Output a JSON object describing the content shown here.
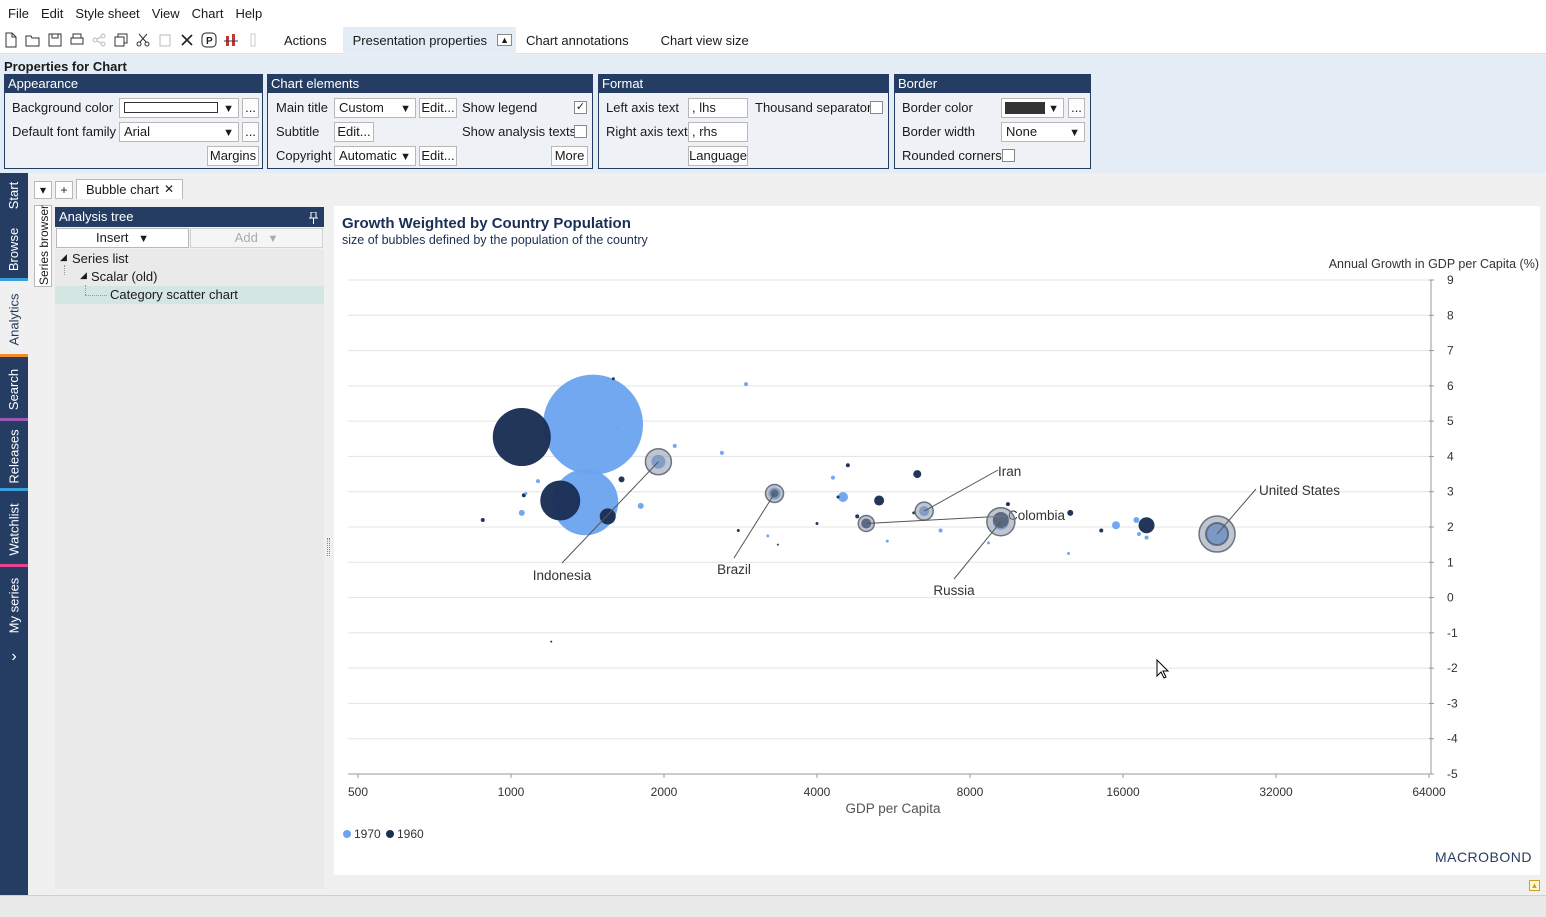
{
  "menu": [
    "File",
    "Edit",
    "Style sheet",
    "View",
    "Chart",
    "Help"
  ],
  "toolbar": {
    "tabs": [
      "Actions",
      "Presentation properties",
      "Chart annotations",
      "Chart view size"
    ],
    "collapse_glyph": "▲"
  },
  "properties": {
    "title": "Properties for Chart",
    "appearance": {
      "header": "Appearance",
      "background_color_label": "Background color",
      "default_font_family_label": "Default font family",
      "default_font_family_value": "Arial",
      "more_button": "...",
      "margins_button": "Margins"
    },
    "chart_elements": {
      "header": "Chart elements",
      "main_title_label": "Main title",
      "main_title_value": "Custom",
      "subtitle_label": "Subtitle",
      "copyright_label": "Copyright",
      "copyright_value": "Automatic",
      "edit_button": "Edit...",
      "show_legend_label": "Show legend",
      "show_legend_checked": "✓",
      "show_analysis_texts_label": "Show analysis texts",
      "more_button": "More"
    },
    "format": {
      "header": "Format",
      "left_axis_text_label": "Left axis text",
      "left_axis_text_value": ", lhs",
      "right_axis_text_label": "Right axis text",
      "right_axis_text_value": ", rhs",
      "thousand_separator_label": "Thousand separator",
      "language_button": "Language"
    },
    "border": {
      "header": "Border",
      "border_color_label": "Border color",
      "border_color_value": "#333333",
      "border_width_label": "Border width",
      "border_width_value": "None",
      "rounded_corners_label": "Rounded corners"
    }
  },
  "sidebar": {
    "tabs": [
      {
        "label": "Start",
        "color": "#253d63"
      },
      {
        "label": "Browse",
        "color": "#3aa0dd"
      },
      {
        "label": "Analytics",
        "color": "#f28c28"
      },
      {
        "label": "Search",
        "color": "#9b59b6"
      },
      {
        "label": "Releases",
        "color": "#3aa0dd"
      },
      {
        "label": "Watchlist",
        "color": "#e84393"
      },
      {
        "label": "My series",
        "color": "#253d63"
      }
    ],
    "expand_glyph": "›"
  },
  "doc_tabs": {
    "dropdown_glyph": "▾",
    "add_glyph": "+",
    "active_label": "Bubble chart",
    "close_glyph": "✕"
  },
  "series_browser_label": "Series browser",
  "analysis_tree": {
    "header": "Analysis tree",
    "pin_glyph": "📌",
    "insert_label": "Insert",
    "add_label": "Add",
    "nodes": [
      "Series list",
      "Scalar (old)",
      "Category scatter chart"
    ]
  },
  "chart_data": {
    "type": "scatter",
    "title": "Growth Weighted by Country Population",
    "subtitle": "size of bubbles defined by the population of  the country",
    "xlabel": "GDP per Capita",
    "ylabel": "Annual Growth in GDP per Capita (%)",
    "x_scale": "log2",
    "xlim": [
      470,
      64000
    ],
    "ylim": [
      -5,
      9
    ],
    "x_ticks": [
      500,
      1000,
      2000,
      4000,
      8000,
      16000,
      32000,
      64000
    ],
    "y_ticks": [
      9,
      8,
      7,
      6,
      5,
      4,
      3,
      2,
      1,
      0,
      -1,
      -2,
      -3,
      -4,
      -5
    ],
    "grid": true,
    "legend_position": "bottom-left",
    "series": [
      {
        "name": "1970",
        "color": "#6aa3ef",
        "points": [
          [
            1450,
            4.9,
            50
          ],
          [
            1400,
            2.7,
            33
          ],
          [
            1950,
            3.85,
            7
          ],
          [
            3300,
            2.95,
            6
          ],
          [
            6500,
            2.45,
            5
          ],
          [
            9200,
            2.15,
            8
          ],
          [
            24500,
            1.8,
            10
          ],
          [
            1800,
            2.6,
            3
          ],
          [
            1050,
            2.4,
            3
          ],
          [
            2100,
            4.3,
            2
          ],
          [
            4500,
            2.85,
            5
          ],
          [
            15500,
            2.05,
            4
          ],
          [
            17000,
            2.2,
            3
          ],
          [
            17800,
            1.7,
            2
          ],
          [
            2600,
            4.1,
            2
          ],
          [
            1070,
            2.95,
            1.5
          ],
          [
            1130,
            3.3,
            2
          ],
          [
            12500,
            1.25,
            1.5
          ],
          [
            7000,
            1.9,
            2
          ],
          [
            4300,
            3.4,
            2
          ],
          [
            2900,
            6.05,
            2
          ],
          [
            8700,
            1.55,
            1.5
          ],
          [
            17200,
            1.8,
            2
          ],
          [
            5500,
            1.6,
            1.5
          ],
          [
            1620,
            4.8,
            1.5
          ],
          [
            3200,
            1.75,
            1.5
          ]
        ]
      },
      {
        "name": "1960",
        "color": "#1b2f55",
        "points": [
          [
            1050,
            4.55,
            29
          ],
          [
            1250,
            2.75,
            20
          ],
          [
            1550,
            2.3,
            8
          ],
          [
            9200,
            2.2,
            8
          ],
          [
            24500,
            1.8,
            12
          ],
          [
            17800,
            2.05,
            8
          ],
          [
            3300,
            2.95,
            4
          ],
          [
            5000,
            2.1,
            5
          ],
          [
            5300,
            2.75,
            5
          ],
          [
            6300,
            3.5,
            4
          ],
          [
            1650,
            3.35,
            3
          ],
          [
            4600,
            3.75,
            2
          ],
          [
            880,
            2.2,
            2
          ],
          [
            1060,
            2.9,
            2
          ],
          [
            12600,
            2.4,
            3
          ],
          [
            14500,
            1.9,
            2
          ],
          [
            9500,
            2.65,
            2
          ],
          [
            4800,
            2.3,
            2
          ],
          [
            2800,
            1.9,
            1.5
          ],
          [
            1590,
            6.2,
            1.5
          ],
          [
            1200,
            -1.25,
            1
          ],
          [
            6200,
            2.4,
            1.5
          ],
          [
            3350,
            1.5,
            1
          ],
          [
            4400,
            2.85,
            1.5
          ],
          [
            4000,
            2.1,
            1.5
          ]
        ]
      }
    ],
    "labeled_countries": [
      {
        "name": "Indonesia",
        "x": 1950,
        "y": 3.85
      },
      {
        "name": "Brazil",
        "x": 3300,
        "y": 2.95
      },
      {
        "name": "Iran",
        "x": 6500,
        "y": 2.45
      },
      {
        "name": "Colombia",
        "x": 5000,
        "y": 2.1
      },
      {
        "name": "Russia",
        "x": 9200,
        "y": 2.15
      },
      {
        "name": "United States",
        "x": 24500,
        "y": 1.8
      }
    ],
    "brand": "MACROBOND"
  }
}
